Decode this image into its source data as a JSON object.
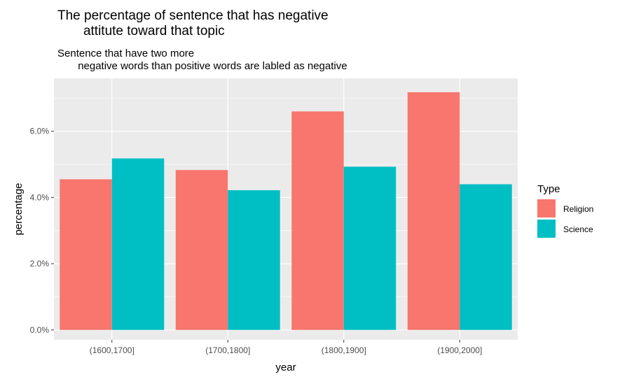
{
  "chart_data": {
    "type": "bar",
    "title_line1": "The percentage of sentence that has negative",
    "title_line2": "attitute toward that topic",
    "subtitle_line1": "Sentence that have two more",
    "subtitle_line2": "negative words than positive words are labled as negative",
    "xlabel": "year",
    "ylabel": "percentage",
    "categories": [
      "(1600,1700]",
      "(1700,1800]",
      "(1800,1900]",
      "(1900,2000]"
    ],
    "series": [
      {
        "name": "Religion",
        "color": "#F8766D",
        "values": [
          4.55,
          4.83,
          6.6,
          7.18
        ]
      },
      {
        "name": "Science",
        "color": "#00BFC4",
        "values": [
          5.18,
          4.22,
          4.93,
          4.4
        ]
      }
    ],
    "ylim": [
      -0.3,
      7.6
    ],
    "yticks": [
      0,
      2,
      4,
      6
    ],
    "ytick_labels": [
      "0.0%",
      "2.0%",
      "4.0%",
      "6.0%"
    ],
    "grid": true,
    "legend_title": "Type",
    "legend_position": "right"
  }
}
